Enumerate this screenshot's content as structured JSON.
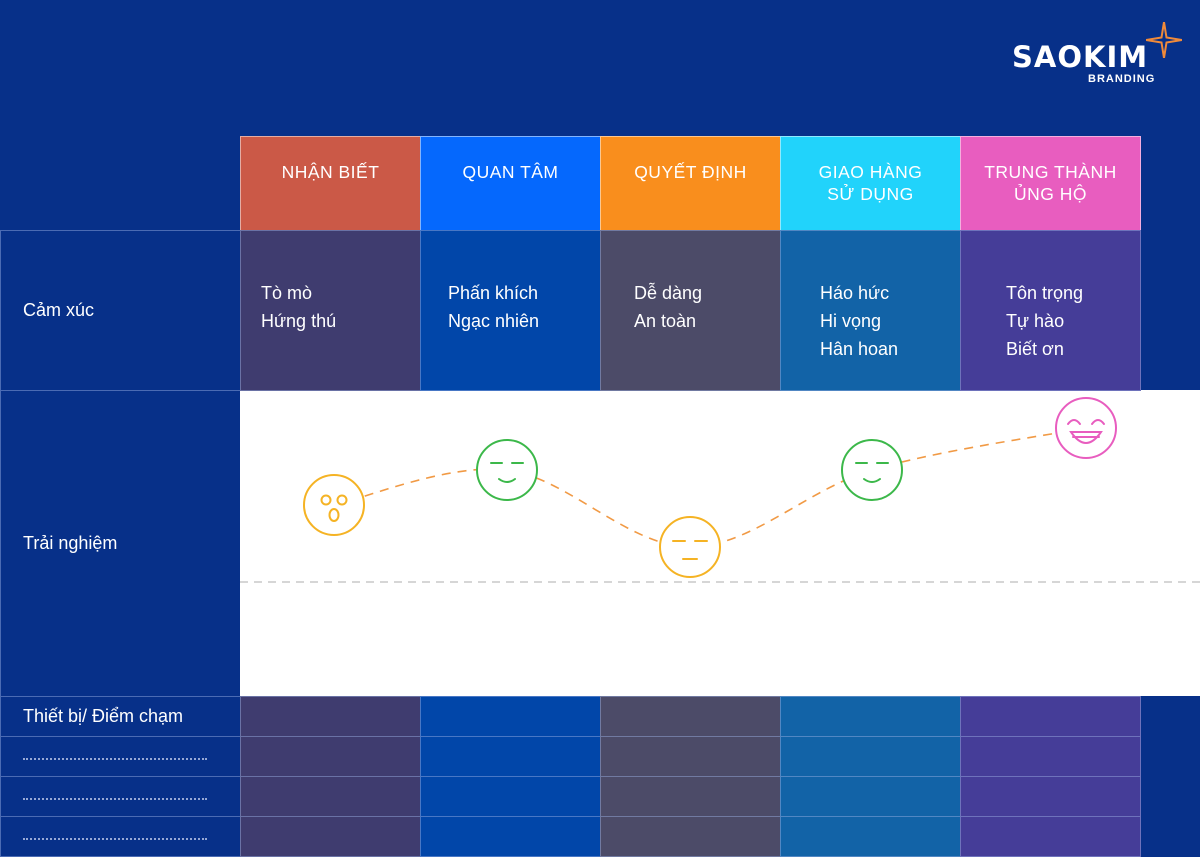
{
  "brand": {
    "name": "SAOKIM",
    "sub": "BRANDING",
    "star_color": "#f08a3a"
  },
  "stages": [
    {
      "label": "NHẬN BIẾT",
      "header_color": "#cb5947",
      "cell_color": "#3f3c6f"
    },
    {
      "label": "QUAN TÂM",
      "header_color": "#0568fd",
      "cell_color": "#0146a9"
    },
    {
      "label": "QUYẾT ĐỊNH",
      "header_color": "#f98e1d",
      "cell_color": "#4c4b68"
    },
    {
      "label": "GIAO HÀNG\nSỬ DỤNG",
      "header_color": "#21d3fb",
      "cell_color": "#1263a7"
    },
    {
      "label": "TRUNG THÀNH\nỦNG HỘ",
      "header_color": "#e85dbf",
      "cell_color": "#453d98"
    }
  ],
  "rows": {
    "emotion_label": "Cảm xúc",
    "experience_label": "Trải nghiệm",
    "device_label": "Thiết bị/ Điểm chạm"
  },
  "emotions": [
    [
      "Tò mò",
      "Hứng thú"
    ],
    [
      "Phấn khích",
      "Ngạc nhiên"
    ],
    [
      "Dễ dàng",
      "An toàn"
    ],
    [
      "Háo hức",
      "Hi vọng",
      "Hân hoan"
    ],
    [
      "Tôn trọng",
      "Tự hào",
      "Biết ơn"
    ]
  ],
  "experience": {
    "faces": [
      {
        "icon": "surprised-face-icon",
        "color": "#f5b324",
        "level": 0.45
      },
      {
        "icon": "content-face-icon",
        "color": "#3cb84a",
        "level": 0.7
      },
      {
        "icon": "neutral-face-icon",
        "color": "#f5b324",
        "level": 0.15
      },
      {
        "icon": "content-face-icon",
        "color": "#3cb84a",
        "level": 0.7
      },
      {
        "icon": "laughing-face-icon",
        "color": "#e85dbf",
        "level": 1.0
      }
    ],
    "curve_color": "#f19a45",
    "baseline_color": "#c9c9c9"
  }
}
